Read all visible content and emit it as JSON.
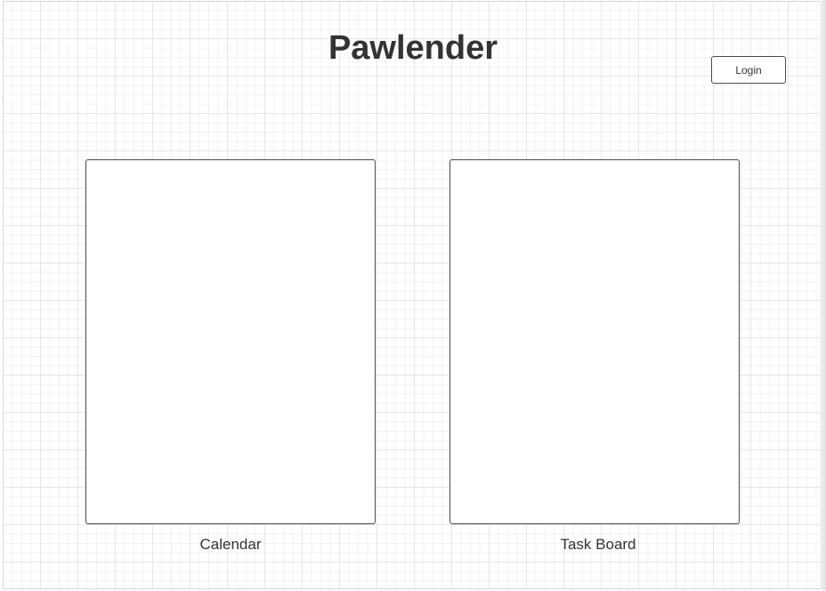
{
  "app": {
    "title": "Pawlender"
  },
  "header": {
    "login_label": "Login"
  },
  "panels": [
    {
      "label": "Calendar"
    },
    {
      "label": "Task Board"
    }
  ]
}
